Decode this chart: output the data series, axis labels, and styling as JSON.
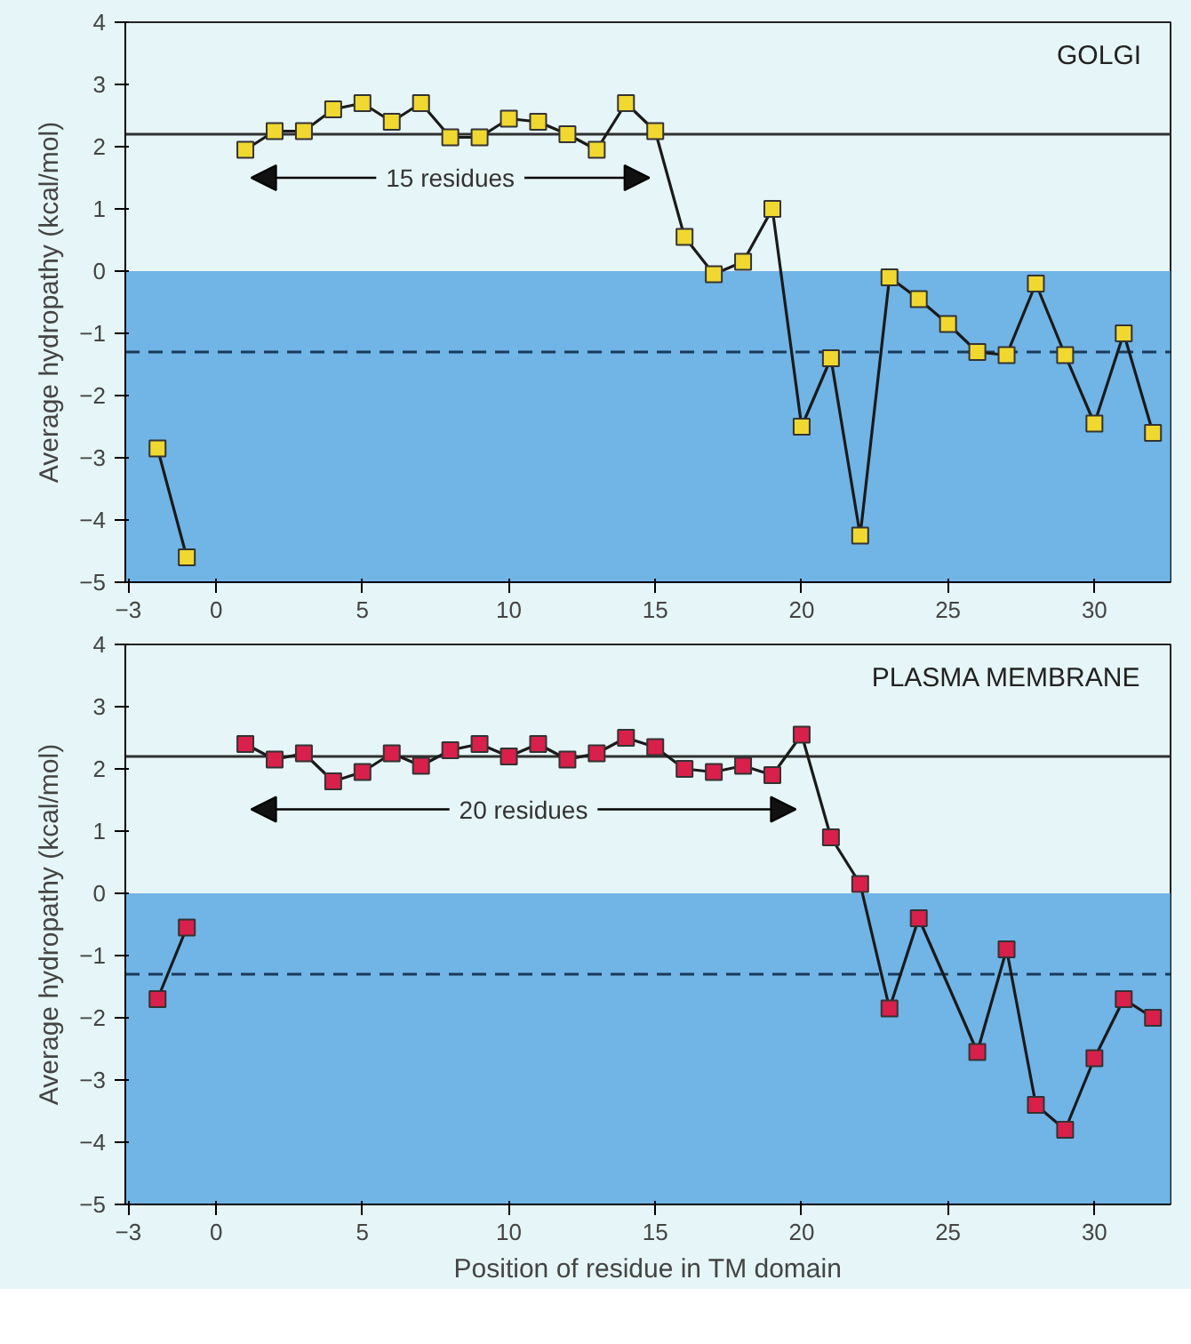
{
  "chart_data": [
    {
      "type": "line",
      "title": "GOLGI",
      "ylabel": "Average hydropathy (kcal/mol)",
      "xlim": [
        -3.1,
        32.6
      ],
      "ylim": [
        -5,
        4
      ],
      "xticks": [
        -3,
        0,
        5,
        10,
        15,
        20,
        25,
        30
      ],
      "yticks": [
        -5,
        -4,
        -3,
        -2,
        -1,
        0,
        1,
        2,
        3,
        4
      ],
      "grid": false,
      "marker": "square",
      "line_style": "solid",
      "x": [
        -2,
        -1,
        0,
        1,
        2,
        3,
        4,
        5,
        6,
        7,
        8,
        9,
        10,
        11,
        12,
        13,
        14,
        15,
        16,
        17,
        18,
        19,
        20,
        21,
        22,
        23,
        24,
        25,
        26,
        27,
        28,
        29,
        30,
        31,
        32
      ],
      "series": [
        {
          "color": "#f0d830",
          "values": [
            -2.85,
            -4.6,
            null,
            1.95,
            2.25,
            2.25,
            2.6,
            2.7,
            2.4,
            2.7,
            2.15,
            2.15,
            2.45,
            2.4,
            2.2,
            1.95,
            2.7,
            2.25,
            0.55,
            -0.05,
            0.15,
            1.0,
            -2.5,
            -1.4,
            -4.25,
            -0.1,
            -0.45,
            -0.85,
            -1.3,
            -1.35,
            -0.2,
            -1.35,
            -2.45,
            -1.0,
            -2.6
          ]
        }
      ],
      "ref_lines": [
        {
          "axis": "y",
          "value": 2.2,
          "label": null,
          "color": "#303030",
          "line_style": "solid"
        },
        {
          "axis": "y",
          "value": -1.3,
          "label": null,
          "color": "#1a3a5a",
          "line_style": "dashed"
        }
      ],
      "bands": [
        {
          "axis": "y",
          "from": -5,
          "to": 0,
          "label": null,
          "color": "#4a9ee0"
        }
      ],
      "annotations": [
        "15 residues"
      ]
    },
    {
      "type": "line",
      "title": "PLASMA MEMBRANE",
      "xlabel": "Position of residue in TM domain",
      "ylabel": "Average hydropathy (kcal/mol)",
      "xlim": [
        -3.1,
        32.6
      ],
      "ylim": [
        -5,
        4
      ],
      "xticks": [
        -3,
        0,
        5,
        10,
        15,
        20,
        25,
        30
      ],
      "yticks": [
        -5,
        -4,
        -3,
        -2,
        -1,
        0,
        1,
        2,
        3,
        4
      ],
      "grid": false,
      "marker": "square",
      "line_style": "solid",
      "series": [
        {
          "color": "#d8204a",
          "x": [
            -2,
            -1,
            0,
            1,
            2,
            3,
            4,
            5,
            6,
            7,
            8,
            9,
            10,
            11,
            12,
            13,
            14,
            15,
            16,
            17,
            18,
            19,
            20,
            21,
            22,
            23,
            24,
            26,
            27,
            28,
            29,
            30,
            31,
            32
          ],
          "values": [
            -1.7,
            -0.55,
            null,
            2.4,
            2.15,
            2.25,
            1.8,
            1.95,
            2.25,
            2.05,
            2.3,
            2.4,
            2.2,
            2.4,
            2.15,
            2.25,
            2.5,
            2.35,
            2.0,
            1.95,
            2.05,
            1.9,
            2.55,
            0.9,
            0.15,
            -1.85,
            -0.4,
            -2.55,
            -0.9,
            -3.4,
            -3.8,
            -2.65,
            -1.7,
            -2.0
          ]
        }
      ],
      "ref_lines": [
        {
          "axis": "y",
          "value": 2.2,
          "label": null,
          "color": "#303030",
          "line_style": "solid"
        },
        {
          "axis": "y",
          "value": -1.3,
          "label": null,
          "color": "#1a3a5a",
          "line_style": "dashed"
        }
      ],
      "bands": [
        {
          "axis": "y",
          "from": -5,
          "to": 0,
          "label": null,
          "color": "#4a9ee0"
        }
      ],
      "annotations": [
        "20 residues"
      ]
    }
  ]
}
